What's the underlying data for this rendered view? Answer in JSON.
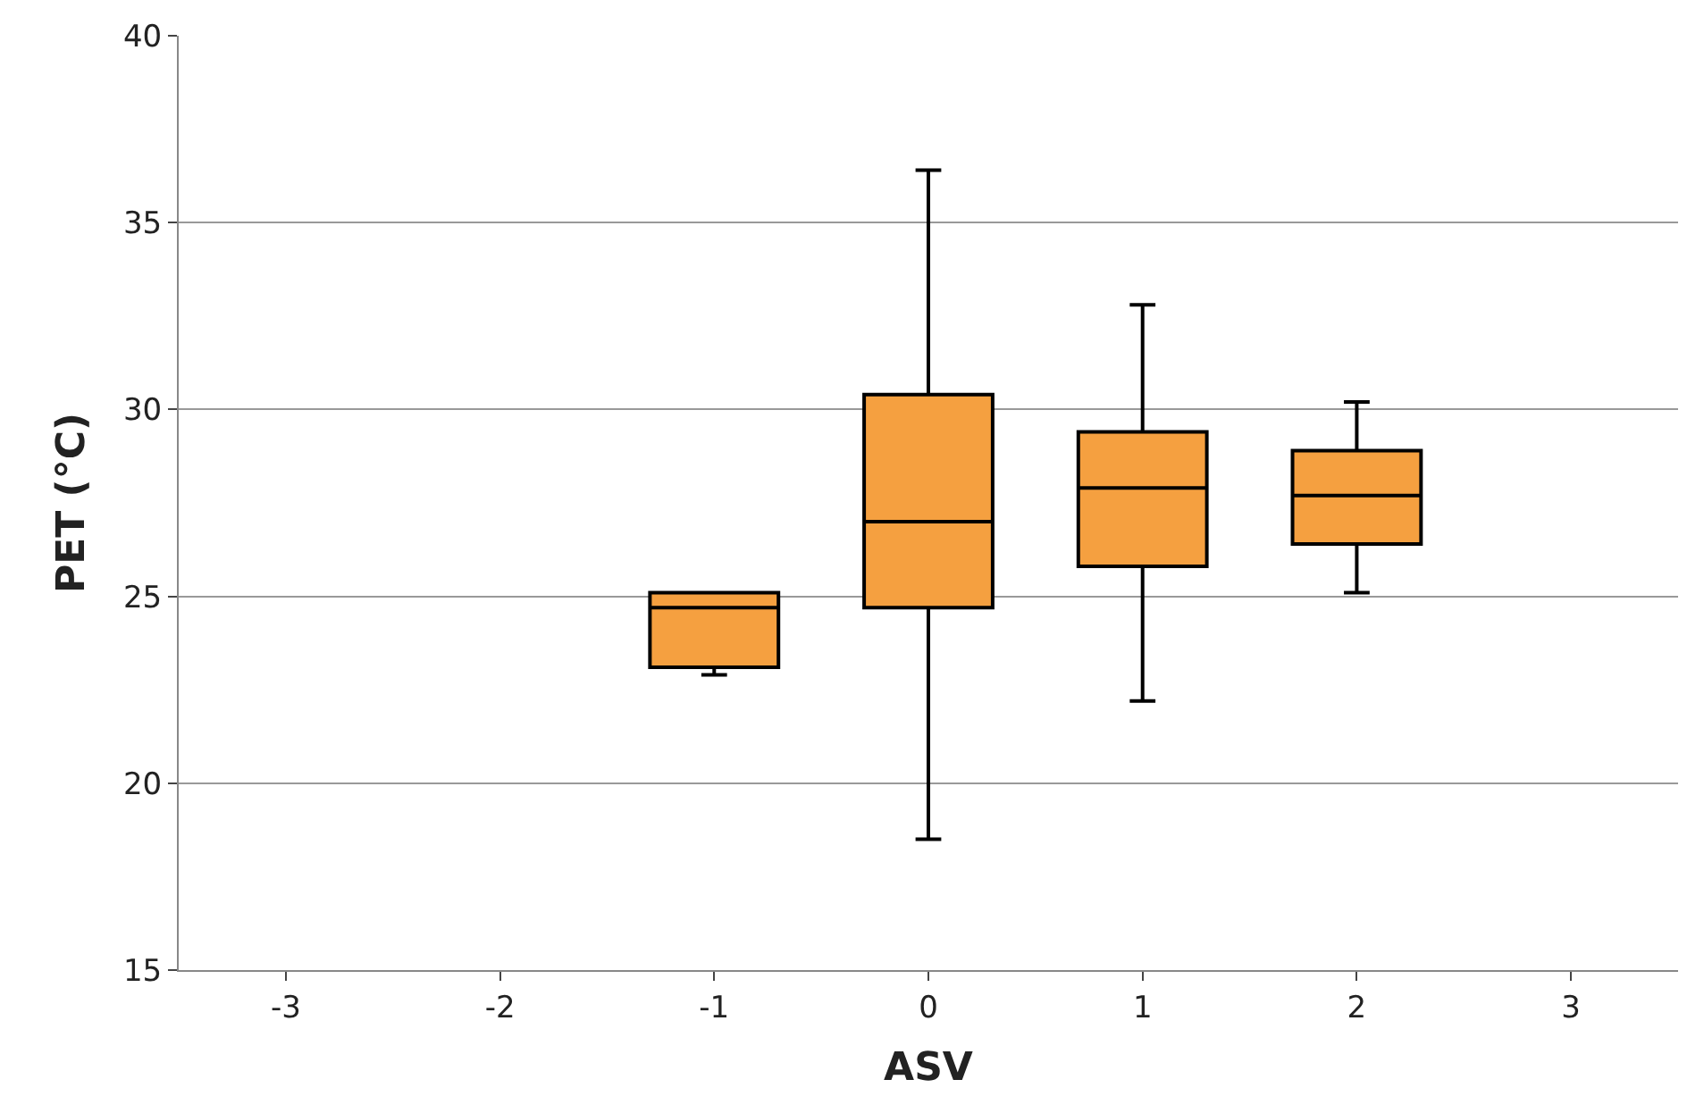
{
  "chart_data": {
    "type": "box",
    "xlabel": "ASV",
    "ylabel": "PET (°C)",
    "categories": [
      "-3",
      "-2",
      "-1",
      "0",
      "1",
      "2",
      "3"
    ],
    "boxes": [
      null,
      null,
      {
        "low": 22.9,
        "q1": 23.1,
        "median": 24.7,
        "q3": 25.1,
        "high": 25.1
      },
      {
        "low": 18.5,
        "q1": 24.7,
        "median": 27.0,
        "q3": 30.4,
        "high": 36.4
      },
      {
        "low": 22.2,
        "q1": 25.8,
        "median": 27.9,
        "q3": 29.4,
        "high": 32.8
      },
      {
        "low": 25.1,
        "q1": 26.4,
        "median": 27.7,
        "q3": 28.9,
        "high": 30.2
      },
      null
    ],
    "color": "#f5a040",
    "ylim": [
      15,
      40
    ],
    "yticks": [
      15,
      20,
      25,
      30,
      35,
      40
    ],
    "grid": "y",
    "legend": false
  }
}
